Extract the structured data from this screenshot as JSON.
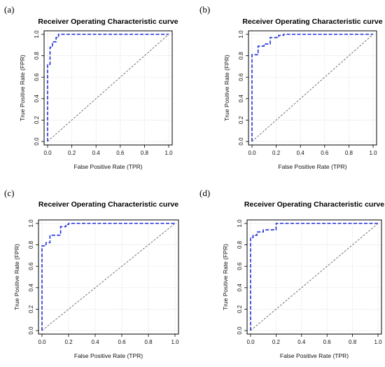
{
  "chart_data": [
    {
      "type": "line",
      "panel_label": "(a)",
      "title": "Receiver Operating Characteristic curve",
      "xlabel": "False Positive Rate (TPR)",
      "ylabel": "True Positive Rate (FPR)",
      "xlim": [
        0,
        1
      ],
      "ylim": [
        0,
        1
      ],
      "ticks": [
        "0.0",
        "0.2",
        "0.4",
        "0.6",
        "0.8",
        "1.0"
      ],
      "grid": true,
      "series": [
        {
          "style": "dashed",
          "color": "#1f2fd8",
          "points": [
            [
              0,
              0
            ],
            [
              0,
              0.72
            ],
            [
              0.02,
              0.72
            ],
            [
              0.02,
              0.88
            ],
            [
              0.04,
              0.88
            ],
            [
              0.04,
              0.93
            ],
            [
              0.07,
              0.93
            ],
            [
              0.07,
              0.97
            ],
            [
              0.09,
              0.97
            ],
            [
              0.09,
              1.0
            ],
            [
              1.0,
              1.0
            ]
          ]
        },
        {
          "style": "dashed",
          "color": "#555555",
          "points": [
            [
              0,
              0
            ],
            [
              1,
              1
            ]
          ]
        }
      ]
    },
    {
      "type": "line",
      "panel_label": "(b)",
      "title": "Receiver Operating Characteristic curve",
      "xlabel": "False Positive Rate (TPR)",
      "ylabel": "True Positive Rate (FPR)",
      "xlim": [
        0,
        1
      ],
      "ylim": [
        0,
        1
      ],
      "ticks": [
        "0.0",
        "0.2",
        "0.4",
        "0.6",
        "0.8",
        "1.0"
      ],
      "grid": true,
      "series": [
        {
          "style": "dashed",
          "color": "#1f2fd8",
          "points": [
            [
              0,
              0
            ],
            [
              0,
              0.81
            ],
            [
              0.05,
              0.81
            ],
            [
              0.05,
              0.89
            ],
            [
              0.1,
              0.89
            ],
            [
              0.1,
              0.91
            ],
            [
              0.15,
              0.91
            ],
            [
              0.15,
              0.97
            ],
            [
              0.22,
              0.97
            ],
            [
              0.22,
              0.99
            ],
            [
              0.26,
              0.99
            ],
            [
              0.26,
              1.0
            ],
            [
              1.0,
              1.0
            ]
          ]
        },
        {
          "style": "dashed",
          "color": "#555555",
          "points": [
            [
              0,
              0
            ],
            [
              1,
              1
            ]
          ]
        }
      ]
    },
    {
      "type": "line",
      "panel_label": "(c)",
      "title": "Receiver Operating Characteristic curve",
      "xlabel": "False Positive Rate (TPR)",
      "ylabel": "True Positive Rate (FPR)",
      "xlim": [
        0,
        1
      ],
      "ylim": [
        0,
        1
      ],
      "ticks": [
        "0.0",
        "0.2",
        "0.4",
        "0.6",
        "0.8",
        "1.0"
      ],
      "grid": true,
      "series": [
        {
          "style": "dashed",
          "color": "#1f2fd8",
          "points": [
            [
              0,
              0
            ],
            [
              0,
              0.79
            ],
            [
              0.03,
              0.79
            ],
            [
              0.03,
              0.82
            ],
            [
              0.06,
              0.82
            ],
            [
              0.06,
              0.89
            ],
            [
              0.14,
              0.89
            ],
            [
              0.14,
              0.97
            ],
            [
              0.18,
              0.97
            ],
            [
              0.18,
              0.99
            ],
            [
              0.2,
              0.99
            ],
            [
              0.2,
              1.0
            ],
            [
              1.0,
              1.0
            ]
          ]
        },
        {
          "style": "dashed",
          "color": "#555555",
          "points": [
            [
              0,
              0
            ],
            [
              1,
              1
            ]
          ]
        }
      ]
    },
    {
      "type": "line",
      "panel_label": "(d)",
      "title": "Receiver Operating Characteristic curve",
      "xlabel": "False Positive Rate (TPR)",
      "ylabel": "True Positive Rate (FPR)",
      "xlim": [
        0,
        1
      ],
      "ylim": [
        0,
        1
      ],
      "ticks": [
        "0.0",
        "0.2",
        "0.4",
        "0.6",
        "0.8",
        "1.0"
      ],
      "grid": true,
      "series": [
        {
          "style": "dashed",
          "color": "#1f2fd8",
          "points": [
            [
              0,
              0
            ],
            [
              0,
              0.87
            ],
            [
              0.02,
              0.87
            ],
            [
              0.02,
              0.89
            ],
            [
              0.05,
              0.89
            ],
            [
              0.05,
              0.92
            ],
            [
              0.1,
              0.92
            ],
            [
              0.1,
              0.94
            ],
            [
              0.2,
              0.94
            ],
            [
              0.2,
              1.0
            ],
            [
              1.0,
              1.0
            ]
          ]
        },
        {
          "style": "dashed",
          "color": "#555555",
          "points": [
            [
              0,
              0
            ],
            [
              1,
              1
            ]
          ]
        }
      ]
    }
  ]
}
